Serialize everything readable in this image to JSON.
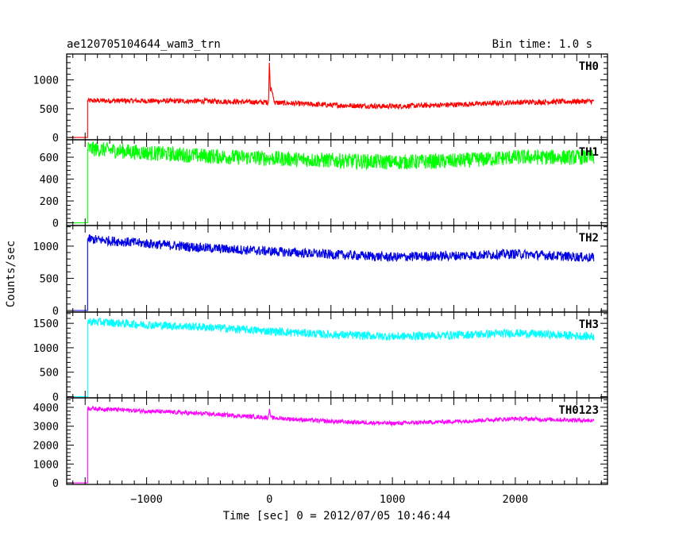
{
  "chart_data": {
    "type": "line",
    "title_left": "ae120705104644_wam3_trn",
    "title_right": "Bin time: 1.0 s",
    "xlabel": "Time [sec] 0 = 2012/07/05 10:46:44",
    "ylabel": "Counts/sec",
    "xlim": [
      -1650,
      2750
    ],
    "xticks": [
      -1000,
      0,
      1000,
      2000
    ],
    "xtick_labels": [
      "−1000",
      "0",
      "1000",
      "2000"
    ],
    "grid": false,
    "panels": [
      {
        "name": "TH0",
        "color": "#ff0000",
        "ylim": [
          -40,
          1450
        ],
        "yticks": [
          0,
          500,
          1000
        ],
        "ytick_labels": [
          "0",
          "500",
          "1000"
        ],
        "onset": -1480,
        "pre_level": 0,
        "start_x": -1640,
        "end_x": 2640,
        "trend": [
          [
            -1480,
            640
          ],
          [
            -500,
            630
          ],
          [
            0,
            610
          ],
          [
            500,
            560
          ],
          [
            1000,
            540
          ],
          [
            1500,
            570
          ],
          [
            2000,
            610
          ],
          [
            2640,
            630
          ]
        ],
        "noise": 45,
        "spikes": [
          {
            "x": 0,
            "peak": 1400,
            "width": 8
          },
          {
            "x": 15,
            "peak": 900,
            "width": 25
          }
        ]
      },
      {
        "name": "TH1",
        "color": "#00ff00",
        "ylim": [
          -25,
          760
        ],
        "yticks": [
          0,
          200,
          400,
          600
        ],
        "ytick_labels": [
          "0",
          "200",
          "400",
          "600"
        ],
        "onset": -1480,
        "pre_level": 0,
        "start_x": -1640,
        "end_x": 2640,
        "trend": [
          [
            -1480,
            680
          ],
          [
            -1000,
            640
          ],
          [
            -500,
            610
          ],
          [
            0,
            590
          ],
          [
            500,
            570
          ],
          [
            1000,
            555
          ],
          [
            1500,
            565
          ],
          [
            2000,
            600
          ],
          [
            2640,
            600
          ]
        ],
        "noise": 70,
        "spikes": []
      },
      {
        "name": "TH2",
        "color": "#0000e6",
        "ylim": [
          -25,
          1320
        ],
        "yticks": [
          0,
          500,
          1000
        ],
        "ytick_labels": [
          "0",
          "500",
          "1000"
        ],
        "onset": -1480,
        "pre_level": 0,
        "start_x": -1640,
        "end_x": 2640,
        "trend": [
          [
            -1480,
            1110
          ],
          [
            -1000,
            1040
          ],
          [
            -500,
            970
          ],
          [
            0,
            920
          ],
          [
            500,
            870
          ],
          [
            1000,
            830
          ],
          [
            1500,
            850
          ],
          [
            2000,
            880
          ],
          [
            2640,
            820
          ]
        ],
        "noise": 75,
        "spikes": []
      },
      {
        "name": "TH3",
        "color": "#00ffff",
        "ylim": [
          -25,
          1730
        ],
        "yticks": [
          0,
          500,
          1000,
          1500
        ],
        "ytick_labels": [
          "0",
          "500",
          "1000",
          "1500"
        ],
        "onset": -1480,
        "pre_level": 0,
        "start_x": -1640,
        "end_x": 2640,
        "trend": [
          [
            -1480,
            1540
          ],
          [
            -1000,
            1470
          ],
          [
            -500,
            1420
          ],
          [
            0,
            1340
          ],
          [
            500,
            1270
          ],
          [
            1000,
            1230
          ],
          [
            1500,
            1260
          ],
          [
            2000,
            1300
          ],
          [
            2640,
            1230
          ]
        ],
        "noise": 85,
        "spikes": []
      },
      {
        "name": "TH0123",
        "color": "#ff00ff",
        "ylim": [
          -80,
          4500
        ],
        "yticks": [
          0,
          1000,
          2000,
          3000,
          4000
        ],
        "ytick_labels": [
          "0",
          "1000",
          "2000",
          "3000",
          "4000"
        ],
        "onset": -1480,
        "pre_level": 0,
        "start_x": -1640,
        "end_x": 2640,
        "trend": [
          [
            -1480,
            3950
          ],
          [
            -1000,
            3800
          ],
          [
            -500,
            3650
          ],
          [
            0,
            3450
          ],
          [
            500,
            3250
          ],
          [
            1000,
            3150
          ],
          [
            1500,
            3250
          ],
          [
            2000,
            3400
          ],
          [
            2640,
            3300
          ]
        ],
        "noise": 110,
        "spikes": [
          {
            "x": 0,
            "peak": 4100,
            "width": 10
          }
        ]
      }
    ]
  }
}
